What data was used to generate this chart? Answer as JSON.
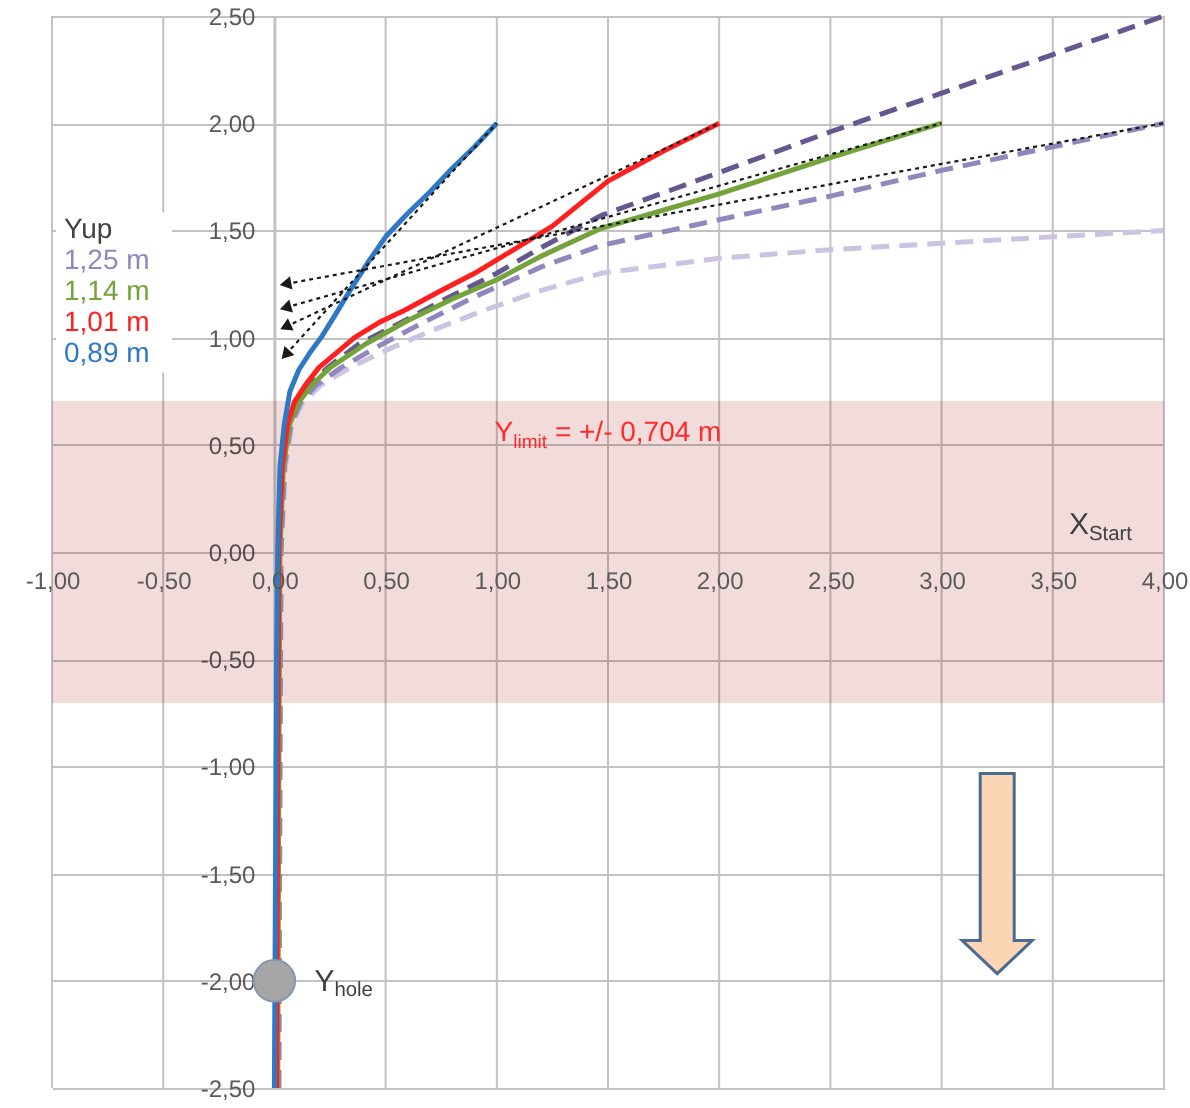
{
  "chart_data": {
    "type": "line",
    "xlabel": "X$_{Start}$",
    "legend_title": "Yup",
    "legend": "left",
    "grid": true,
    "xlim": [
      -1,
      4
    ],
    "ylim": [
      -2.5,
      2.5
    ],
    "xticks": [
      {
        "value": -1,
        "label": "-1,00"
      },
      {
        "value": -0.5,
        "label": "-0,50"
      },
      {
        "value": 0,
        "label": "0,00"
      },
      {
        "value": 0.5,
        "label": "0,50"
      },
      {
        "value": 1,
        "label": "1,00"
      },
      {
        "value": 1.5,
        "label": "1,50"
      },
      {
        "value": 2,
        "label": "2,00"
      },
      {
        "value": 2.5,
        "label": "2,50"
      },
      {
        "value": 3,
        "label": "3,00"
      },
      {
        "value": 3.5,
        "label": "3,50"
      },
      {
        "value": 4,
        "label": "4,00"
      }
    ],
    "yticks": [
      {
        "value": -2.5,
        "label": "-2,50"
      },
      {
        "value": -2,
        "label": "-2,00"
      },
      {
        "value": -1.5,
        "label": "-1,50"
      },
      {
        "value": -1,
        "label": "-1,00"
      },
      {
        "value": -0.5,
        "label": "-0,50"
      },
      {
        "value": 0,
        "label": "0,00"
      },
      {
        "value": 0.5,
        "label": "0,50"
      },
      {
        "value": 1,
        "label": "1,00"
      },
      {
        "value": 1.5,
        "label": "1,50"
      },
      {
        "value": 2,
        "label": "2,00"
      },
      {
        "value": 2.5,
        "label": "2,50"
      }
    ],
    "bands": [
      {
        "axis": "y",
        "from": -0.704,
        "to": 0.704,
        "label": "Y$_{limit}$ = +/- 0,704 m",
        "color": "#f2dcdb"
      }
    ],
    "series": [
      {
        "color": "#cbc3e2",
        "line_style": "dashed",
        "x": [
          0.02,
          0.025,
          0.03,
          0.05,
          0.08,
          0.13,
          0.21,
          0.34,
          0.5,
          0.7,
          0.95,
          1.2,
          1.47,
          2,
          2.5,
          3,
          3.5,
          4
        ],
        "values": [
          -2.5,
          -1,
          0,
          0.4,
          0.6,
          0.7,
          0.78,
          0.86,
          0.94,
          1.03,
          1.13,
          1.22,
          1.3,
          1.37,
          1.41,
          1.44,
          1.47,
          1.5
        ]
      },
      {
        "color": "#65578f",
        "line_style": "dashed",
        "x": [
          0.015,
          0.02,
          0.025,
          0.04,
          0.065,
          0.1,
          0.16,
          0.24,
          0.38,
          0.55,
          0.75,
          1,
          1.2,
          1.47,
          2,
          2.5,
          3,
          3.5,
          4
        ],
        "values": [
          -2.5,
          -1,
          0,
          0.4,
          0.6,
          0.7,
          0.78,
          0.86,
          0.97,
          1.06,
          1.17,
          1.3,
          1.42,
          1.57,
          1.77,
          1.96,
          2.14,
          2.32,
          2.5
        ]
      },
      {
        "name": "1,25 m",
        "color": "#9286be",
        "line_style": "dashed",
        "x": [
          0.02,
          0.025,
          0.03,
          0.045,
          0.075,
          0.12,
          0.19,
          0.3,
          0.45,
          0.65,
          0.9,
          1.2,
          1.47,
          2,
          2.5,
          3,
          3.5,
          4
        ],
        "values": [
          -2.5,
          -1,
          0,
          0.4,
          0.6,
          0.7,
          0.78,
          0.86,
          0.95,
          1.06,
          1.19,
          1.33,
          1.43,
          1.55,
          1.66,
          1.78,
          1.89,
          2.0
        ]
      },
      {
        "name": "1,14 m",
        "color": "#75a33b",
        "line_style": "solid",
        "x": [
          0.015,
          0.02,
          0.025,
          0.04,
          0.07,
          0.11,
          0.17,
          0.25,
          0.41,
          0.6,
          0.8,
          1,
          1.2,
          1.47,
          2,
          2.5,
          3
        ],
        "values": [
          -2.5,
          -1,
          0,
          0.4,
          0.6,
          0.7,
          0.78,
          0.86,
          0.97,
          1.08,
          1.18,
          1.27,
          1.38,
          1.51,
          1.67,
          1.84,
          2.0
        ]
      },
      {
        "name": "1,01 m",
        "color": "#ff1f1f",
        "line_style": "solid",
        "x": [
          0.01,
          0.015,
          0.02,
          0.035,
          0.06,
          0.09,
          0.14,
          0.2,
          0.28,
          0.36,
          0.47,
          0.59,
          0.75,
          0.9,
          1.06,
          1.25,
          1.5,
          1.75,
          2
        ],
        "values": [
          -2.5,
          -1,
          0,
          0.4,
          0.6,
          0.7,
          0.78,
          0.86,
          0.93,
          1.0,
          1.07,
          1.13,
          1.22,
          1.3,
          1.4,
          1.52,
          1.73,
          1.87,
          2.0
        ]
      },
      {
        "name": "0,89 m",
        "color": "#2f78c4",
        "line_style": "solid",
        "x": [
          0,
          0.005,
          0.01,
          0.015,
          0.025,
          0.045,
          0.07,
          0.11,
          0.16,
          0.21,
          0.27,
          0.34,
          0.42,
          0.5,
          0.6,
          0.7,
          0.8,
          0.9,
          1
        ],
        "values": [
          -2.5,
          -1.5,
          -0.5,
          0,
          0.4,
          0.6,
          0.75,
          0.85,
          0.93,
          1.0,
          1.1,
          1.22,
          1.35,
          1.47,
          1.58,
          1.68,
          1.79,
          1.89,
          2.0
        ]
      },
      {
        "color": "#1a1a1a",
        "line_style": "dotted",
        "marker": "triangle",
        "x": [
          0.05,
          4
        ],
        "values": [
          1.25,
          2.0
        ]
      },
      {
        "color": "#1a1a1a",
        "line_style": "dotted",
        "marker": "triangle",
        "x": [
          0.05,
          3
        ],
        "values": [
          1.14,
          2.0
        ]
      },
      {
        "color": "#1a1a1a",
        "line_style": "dotted",
        "marker": "triangle",
        "x": [
          0.05,
          2
        ],
        "values": [
          1.05,
          2.0
        ]
      },
      {
        "color": "#1a1a1a",
        "line_style": "dotted",
        "marker": "triangle",
        "x": [
          0.05,
          1
        ],
        "values": [
          0.92,
          2.0
        ]
      },
      {
        "type": "scatter",
        "name": "Y$_{hole}$",
        "color": "#a6a6a6",
        "marker": "circle",
        "x": [
          0
        ],
        "values": [
          -2
        ]
      }
    ]
  }
}
